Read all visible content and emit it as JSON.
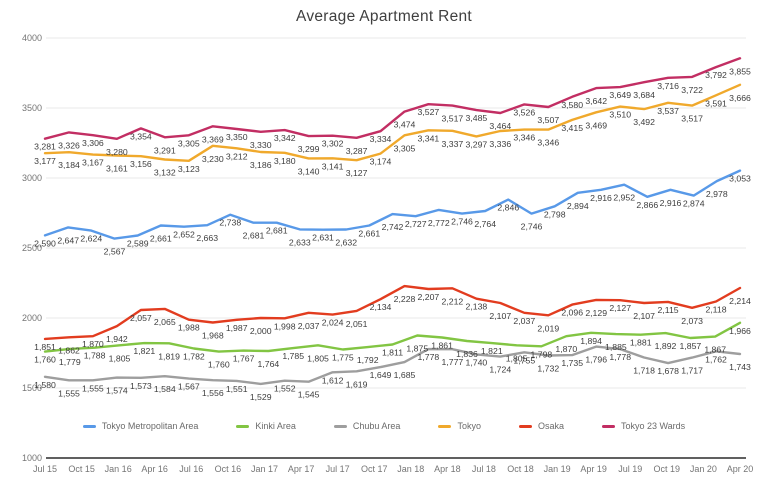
{
  "chart_data": {
    "type": "line",
    "title": "Average Apartment Rent",
    "xlabel": "",
    "ylabel": "",
    "ylim": [
      1000,
      4000
    ],
    "y_ticks": [
      1000,
      1500,
      2000,
      2500,
      3000,
      3500,
      4000
    ],
    "x_tick_labels": [
      "Jul 15",
      "Oct 15",
      "Jan 16",
      "Apr 16",
      "Jul 16",
      "Oct 16",
      "Jan 17",
      "Apr 17",
      "Jul 17",
      "Oct 17",
      "Jan 18",
      "Apr 18",
      "Jul 18",
      "Oct 18",
      "Jan 19",
      "Apr 19",
      "Jul 19",
      "Oct 19",
      "Jan 20",
      "Apr 20"
    ],
    "grid": true,
    "legend_position": "bottom",
    "style": {
      "background": "#ffffff",
      "grid_color": "#e8e8e8",
      "axis_line_color": "#606060",
      "tick_color": "#757575",
      "label_color": "#3d3d3d"
    },
    "series": [
      {
        "name": "Tokyo Metropolitan Area",
        "color": "#5899e8",
        "values": [
          2590,
          2647,
          2624,
          2567,
          2589,
          2661,
          2652,
          2663,
          2738,
          2681,
          2681,
          2633,
          2631,
          2632,
          2661,
          2742,
          2727,
          2772,
          2746,
          2764,
          2846,
          2746,
          2798,
          2894,
          2916,
          2952,
          2866,
          2916,
          2874,
          2978,
          3053
        ]
      },
      {
        "name": "Kinki Area",
        "color": "#82c543",
        "values": [
          1760,
          1779,
          1788,
          1805,
          1821,
          1819,
          1782,
          1760,
          1767,
          1764,
          1785,
          1805,
          1775,
          1792,
          1811,
          1875,
          1861,
          1836,
          1821,
          1805,
          1798,
          1870,
          1894,
          1885,
          1881,
          1892,
          1857,
          1867,
          1966
        ]
      },
      {
        "name": "Chubu Area",
        "color": "#9e9e9e",
        "values": [
          1580,
          1555,
          1555,
          1574,
          1573,
          1584,
          1567,
          1556,
          1551,
          1529,
          1552,
          1545,
          1612,
          1619,
          1649,
          1685,
          1778,
          1777,
          1740,
          1724,
          1755,
          1732,
          1735,
          1796,
          1778,
          1718,
          1678,
          1717,
          1762,
          1743
        ]
      },
      {
        "name": "Tokyo",
        "color": "#f0a92c",
        "values": [
          3177,
          3184,
          3167,
          3161,
          3156,
          3132,
          3123,
          3230,
          3212,
          3186,
          3180,
          3140,
          3141,
          3127,
          3174,
          3305,
          3341,
          3337,
          3297,
          3336,
          3346,
          3346,
          3415,
          3469,
          3510,
          3492,
          3537,
          3517,
          3591,
          3666
        ]
      },
      {
        "name": "Osaka",
        "color": "#e23c1f",
        "values": [
          1851,
          1862,
          1870,
          1942,
          2057,
          2065,
          1988,
          1968,
          1987,
          2000,
          1998,
          2037,
          2024,
          2051,
          2134,
          2228,
          2207,
          2212,
          2138,
          2107,
          2037,
          2019,
          2096,
          2129,
          2127,
          2107,
          2115,
          2073,
          2118,
          2214
        ]
      },
      {
        "name": "Tokyo 23 Wards",
        "color": "#c22e63",
        "values": [
          3281,
          3326,
          3306,
          3280,
          3354,
          3291,
          3305,
          3369,
          3350,
          3330,
          3342,
          3299,
          3302,
          3287,
          3334,
          3474,
          3527,
          3517,
          3485,
          3464,
          3526,
          3507,
          3580,
          3642,
          3649,
          3684,
          3716,
          3722,
          3792,
          3855
        ]
      }
    ]
  }
}
